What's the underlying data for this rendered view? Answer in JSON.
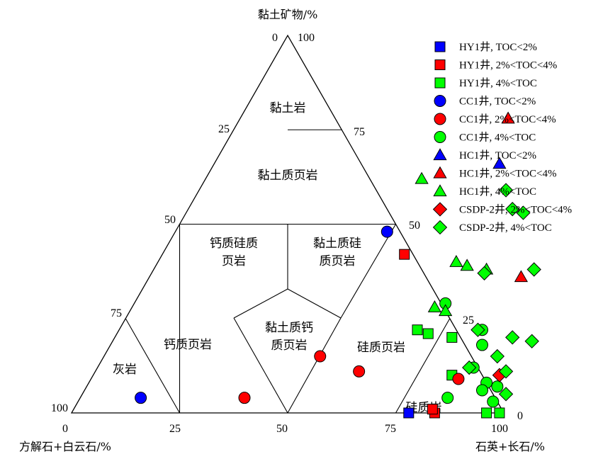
{
  "chart_data": {
    "type": "ternary-scatter",
    "title": "",
    "axes": {
      "top": {
        "label": "黏土矿物/%",
        "ticks": [
          "0",
          "100",
          "25",
          "50",
          "75",
          "100"
        ]
      },
      "right": {
        "label": "石英+长石/%",
        "ticks": [
          "75",
          "50",
          "25",
          "0"
        ]
      },
      "left": {
        "label": "方解石+白云石/%",
        "ticks": [
          "0",
          "25",
          "50",
          "75",
          "100"
        ]
      }
    },
    "tick_labels": [
      {
        "id": "t-top-0",
        "text": "0"
      },
      {
        "id": "t-top-100",
        "text": "100"
      },
      {
        "id": "t-left-25",
        "text": "25"
      },
      {
        "id": "t-left-50",
        "text": "50"
      },
      {
        "id": "t-left-75",
        "text": "75"
      },
      {
        "id": "t-left-100",
        "text": "100"
      },
      {
        "id": "t-right-75",
        "text": "75"
      },
      {
        "id": "t-right-50",
        "text": "50"
      },
      {
        "id": "t-right-25",
        "text": "25"
      },
      {
        "id": "t-right-0",
        "text": "0"
      },
      {
        "id": "t-bot-0",
        "text": "0"
      },
      {
        "id": "t-bot-25",
        "text": "25"
      },
      {
        "id": "t-bot-50",
        "text": "50"
      },
      {
        "id": "t-bot-75",
        "text": "75"
      },
      {
        "id": "t-bot-100",
        "text": "100"
      }
    ],
    "regions": [
      {
        "name": "黏土岩",
        "lines": [
          "黏土岩"
        ]
      },
      {
        "name": "黏土质页岩",
        "lines": [
          "黏土质页岩"
        ]
      },
      {
        "name": "钙质硅质页岩",
        "lines": [
          "钙质硅质",
          "页岩"
        ]
      },
      {
        "name": "黏土质硅质页岩",
        "lines": [
          "黏土质硅",
          "质页岩"
        ]
      },
      {
        "name": "黏土质钙质页岩",
        "lines": [
          "黏土质钙",
          "质页岩"
        ]
      },
      {
        "name": "钙质页岩",
        "lines": [
          "钙质页岩"
        ]
      },
      {
        "name": "灰岩",
        "lines": [
          "灰岩"
        ]
      },
      {
        "name": "硅质页岩",
        "lines": [
          "硅质页岩"
        ]
      },
      {
        "name": "硅质岩",
        "lines": [
          "硅质岩"
        ]
      }
    ],
    "legend_position": "top-right",
    "series": [
      {
        "name": "HY1井, TOC<2%",
        "marker": "square",
        "color": "#0000ff",
        "points": [
          [
            78,
            0,
            22
          ]
        ]
      },
      {
        "name": "HY1井, 2%<TOC<4%",
        "marker": "square",
        "color": "#ff0000",
        "points": [
          [
            84,
            0,
            16
          ],
          [
            56,
            42,
            2
          ],
          [
            83,
            1,
            16
          ]
        ]
      },
      {
        "name": "HY1井, 4%<TOC",
        "marker": "square",
        "color": "#00ff00",
        "points": [
          [
            69,
            22,
            9
          ],
          [
            72,
            21,
            7
          ],
          [
            78,
            20,
            2
          ],
          [
            83,
            10,
            7
          ],
          [
            96,
            0,
            4
          ],
          [
            99,
            0,
            1
          ]
        ]
      },
      {
        "name": "CC1井, TOC<2%",
        "marker": "circle",
        "color": "#0000ff",
        "points": [
          [
            49,
            48,
            3
          ],
          [
            14,
            4,
            82
          ]
        ]
      },
      {
        "name": "CC1井, 2%<TOC<4%",
        "marker": "circle",
        "color": "#ff0000",
        "points": [
          [
            50,
            15,
            35
          ],
          [
            38,
            4,
            58
          ],
          [
            61,
            11,
            28
          ],
          [
            85,
            9,
            6
          ]
        ]
      },
      {
        "name": "CC1井, 4%<TOC",
        "marker": "circle",
        "color": "#00ff00",
        "points": [
          [
            72,
            29,
            -1
          ],
          [
            84,
            22,
            -6
          ],
          [
            86,
            18,
            -4
          ],
          [
            87,
            12,
            1
          ],
          [
            92,
            8,
            0
          ],
          [
            85,
            4,
            11
          ],
          [
            95,
            7,
            -2
          ],
          [
            96,
            3,
            1
          ],
          [
            92,
            6,
            2
          ]
        ]
      },
      {
        "name": "HC1井, TOC<2%",
        "marker": "triangle",
        "color": "#0000ff",
        "points": [
          [
            66,
            66,
            -32
          ]
        ]
      },
      {
        "name": "HC1井, 2%<TOC<4%",
        "marker": "triangle",
        "color": "#ff0000",
        "points": [
          [
            62,
            78,
            -40
          ],
          [
            86,
            36,
            -22
          ]
        ]
      },
      {
        "name": "HC1井, 4%<TOC",
        "marker": "triangle",
        "color": "#00ff00",
        "points": [
          [
            50,
            62,
            -12
          ],
          [
            69,
            40,
            -9
          ],
          [
            72,
            39,
            -11
          ],
          [
            77,
            38,
            -15
          ],
          [
            70,
            28,
            2
          ],
          [
            73,
            27,
            0
          ]
        ]
      },
      {
        "name": "CSDP-2井, 2%<TOC<4%",
        "marker": "diamond",
        "color": "#ff0000",
        "points": [
          [
            94,
            10,
            -4
          ]
        ]
      },
      {
        "name": "CSDP-2井, 4%<TOC",
        "marker": "diamond",
        "color": "#00ff00",
        "points": [
          [
            71,
            59,
            -30
          ],
          [
            75,
            54,
            -29
          ],
          [
            78,
            53,
            -31
          ],
          [
            77,
            37,
            -14
          ],
          [
            88,
            38,
            -26
          ],
          [
            83,
            22,
            -5
          ],
          [
            97,
            19,
            -16
          ],
          [
            92,
            20,
            -12
          ],
          [
            86,
            12,
            2
          ],
          [
            91,
            15,
            -6
          ],
          [
            95,
            11,
            -6
          ],
          [
            98,
            5,
            -3
          ]
        ]
      }
    ]
  }
}
